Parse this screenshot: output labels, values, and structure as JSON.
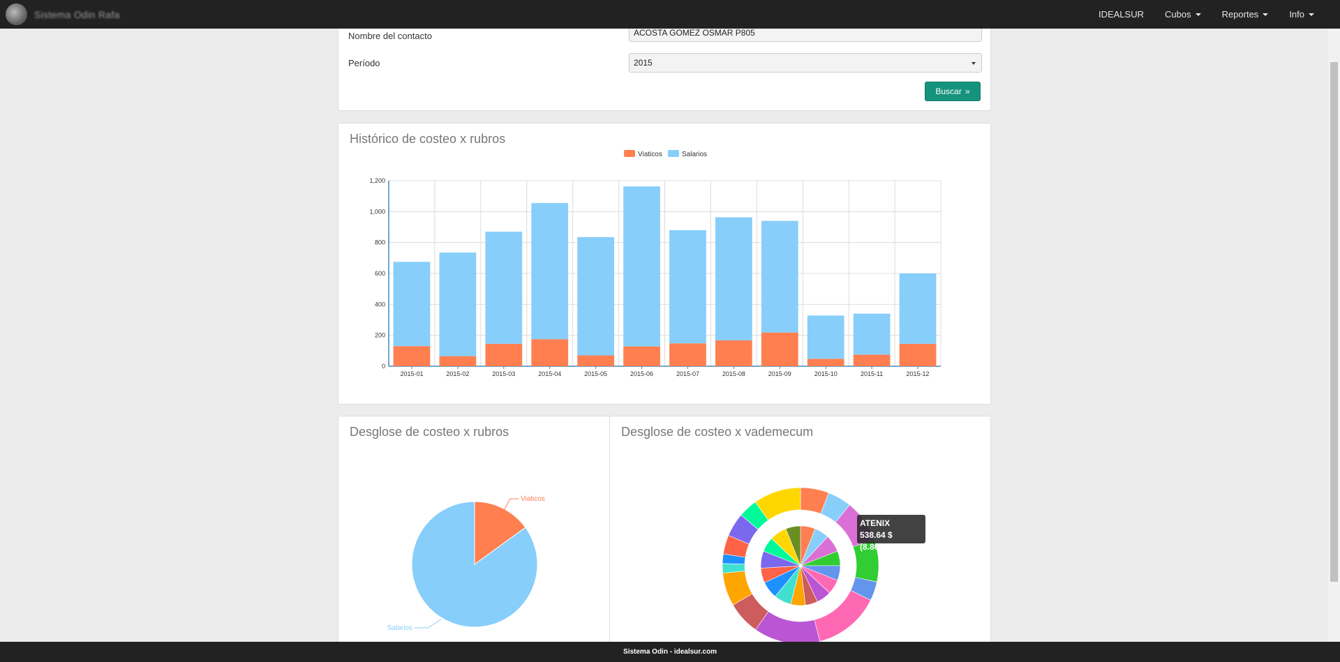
{
  "nav": {
    "brand": "Sistema Odin Rafa",
    "items": [
      {
        "label": "IDEALSUR"
      },
      {
        "label": "Cubos"
      },
      {
        "label": "Reportes"
      },
      {
        "label": "Info"
      }
    ]
  },
  "form": {
    "contact_label": "Nombre del contacto",
    "contact_value": "ACOSTA GOMEZ OSMAR P805",
    "period_label": "Período",
    "period_value": "2015",
    "search_button": "Buscar"
  },
  "bar_panel": {
    "title": "Histórico de costeo x rubros"
  },
  "pie1_panel": {
    "title": "Desglose de costeo x rubros"
  },
  "pie2_panel": {
    "title": "Desglose de costeo x vademecum"
  },
  "tooltip": {
    "name": "ATENIX",
    "value": "538.64 $ (8.86%)"
  },
  "footer": {
    "text": "Sistema Odin - idealsur.com"
  },
  "chart_data": [
    {
      "type": "bar",
      "stacked": true,
      "categories": [
        "2015-01",
        "2015-02",
        "2015-03",
        "2015-04",
        "2015-05",
        "2015-06",
        "2015-07",
        "2015-08",
        "2015-09",
        "2015-10",
        "2015-11",
        "2015-12"
      ],
      "series": [
        {
          "name": "Viaticos",
          "color": "#ff7f50",
          "values": [
            130,
            65,
            145,
            175,
            70,
            128,
            148,
            168,
            218,
            48,
            75,
            145
          ]
        },
        {
          "name": "Salarios",
          "color": "#87cefa",
          "values": [
            545,
            670,
            725,
            880,
            765,
            1035,
            732,
            795,
            722,
            280,
            265,
            455
          ]
        }
      ],
      "ylim": [
        0,
        1200
      ],
      "yticks": [
        "0",
        "200",
        "400",
        "600",
        "800",
        "1,000",
        "1,200"
      ],
      "grid": true,
      "legend": "top-center"
    },
    {
      "type": "pie",
      "labels": [
        "Viaticos",
        "Salarios"
      ],
      "values": [
        15,
        85
      ],
      "colors": [
        "#ff7f50",
        "#87cefa"
      ]
    },
    {
      "type": "pie",
      "variant": "nested-donut",
      "highlighted": {
        "label": "ATENIX",
        "value": 538.64,
        "percent": 8.86
      },
      "outer_colors": [
        "#ff7f50",
        "#87cefa",
        "#da70d6",
        "#32cd32",
        "#6495ed",
        "#ff69b4",
        "#ba55d3",
        "#cd5c5c",
        "#ffa500",
        "#40e0d0",
        "#1e90ff",
        "#ff6347",
        "#7b68ee",
        "#00fa9a",
        "#ffd700"
      ],
      "outer_values": [
        6,
        5,
        8.86,
        9,
        4,
        14,
        14,
        7,
        7,
        2,
        2,
        4,
        5,
        4,
        10
      ],
      "inner_colors": [
        "#ff7f50",
        "#87cefa",
        "#da70d6",
        "#32cd32",
        "#6495ed",
        "#ff69b4",
        "#ba55d3",
        "#cd5c5c",
        "#ffa500",
        "#40e0d0",
        "#1e90ff",
        "#ff6347",
        "#7b68ee",
        "#00fa9a",
        "#ffd700",
        "#6b8e23"
      ],
      "inner_values": [
        6,
        6,
        7,
        6,
        6,
        6,
        6,
        5,
        6,
        7,
        7,
        6,
        7,
        6,
        7,
        6
      ]
    }
  ]
}
